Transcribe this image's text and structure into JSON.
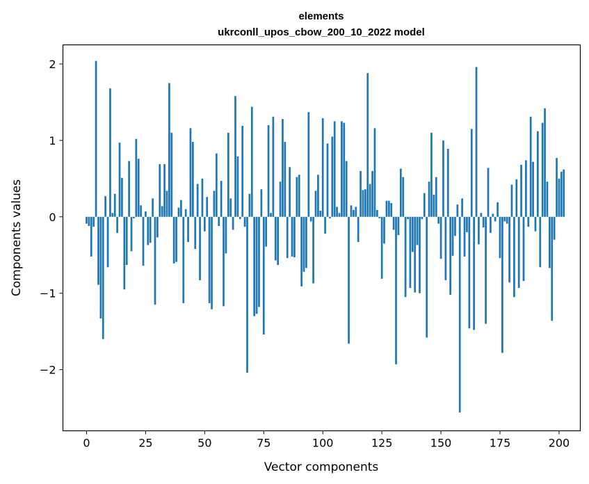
{
  "chart_data": {
    "type": "bar",
    "title_line1": "elements",
    "title_line2": "ukrconll_upos_cbow_200_10_2022 model",
    "xlabel": "Vector components",
    "ylabel": "Components values",
    "xlim": [
      -10,
      209
    ],
    "ylim": [
      -2.8,
      2.25
    ],
    "xticks": [
      0,
      25,
      50,
      75,
      100,
      125,
      150,
      175,
      200
    ],
    "xtick_labels": [
      "0",
      "25",
      "50",
      "75",
      "100",
      "125",
      "150",
      "175",
      "200"
    ],
    "yticks": [
      -2,
      -1,
      0,
      1,
      2
    ],
    "ytick_labels": [
      "−2",
      "−1",
      "0",
      "1",
      "2"
    ],
    "grid": false,
    "bar_color": "#1f77b4",
    "values": [
      -0.09,
      -0.12,
      -0.52,
      -0.13,
      2.04,
      -0.89,
      -1.33,
      -1.6,
      0.27,
      -0.66,
      1.68,
      0.05,
      0.3,
      -0.21,
      0.97,
      0.51,
      -0.95,
      -0.63,
      0.73,
      -0.45,
      -0.02,
      1.02,
      0.76,
      0.15,
      -0.64,
      0.07,
      -0.37,
      -0.34,
      0.24,
      -1.15,
      -0.27,
      0.69,
      0.14,
      0.69,
      0.34,
      1.75,
      1.1,
      -0.61,
      -0.59,
      0.12,
      0.22,
      -1.13,
      0.1,
      -0.33,
      1.16,
      0.98,
      -0.42,
      0.43,
      -0.83,
      0.5,
      -0.19,
      0.26,
      -1.13,
      -1.21,
      0.34,
      0.83,
      -0.12,
      0.47,
      -1.17,
      -0.48,
      1.1,
      0.24,
      -0.17,
      1.58,
      0.79,
      -0.03,
      1.19,
      -0.13,
      -2.04,
      0.3,
      1.44,
      -1.3,
      -1.27,
      -1.18,
      0.36,
      -1.54,
      -0.39,
      1.2,
      0.05,
      1.31,
      -0.57,
      -0.63,
      0.46,
      1.28,
      0.98,
      -0.54,
      0.65,
      -0.52,
      -0.53,
      0.52,
      0.55,
      -0.91,
      -0.72,
      -0.67,
      1.37,
      -0.06,
      -0.87,
      0.34,
      0.55,
      0.08,
      1.29,
      -0.22,
      0.96,
      -0.02,
      1.05,
      1.25,
      0.13,
      0.05,
      1.25,
      1.23,
      0.73,
      -1.66,
      0.15,
      0.09,
      0.13,
      -0.33,
      0.6,
      0.35,
      0.36,
      1.88,
      0.43,
      0.6,
      1.16,
      0.09,
      -0.02,
      -0.81,
      -0.35,
      0.21,
      0.21,
      0.18,
      -0.17,
      -1.93,
      -0.24,
      0.63,
      0.52,
      -1.05,
      -0.03,
      -0.93,
      -0.46,
      -0.99,
      -0.37,
      -1.0,
      -0.03,
      0.31,
      -1.58,
      0.46,
      1.1,
      0.29,
      0.52,
      -0.09,
      -0.55,
      1.0,
      -0.83,
      0.89,
      -1.02,
      -0.51,
      -0.25,
      0.16,
      -2.56,
      0.24,
      -0.52,
      -0.2,
      -1.46,
      1.15,
      -1.48,
      1.96,
      -0.36,
      0.05,
      -0.14,
      -1.4,
      0.64,
      -0.21,
      0.04,
      -0.06,
      0.19,
      -0.54,
      -1.78,
      -0.06,
      -0.09,
      -0.86,
      0.42,
      -1.05,
      0.49,
      -0.93,
      0.68,
      -0.84,
      0.74,
      -0.13,
      1.31,
      0.72,
      -0.19,
      1.12,
      -0.66,
      1.23,
      1.42,
      0.46,
      -0.67,
      -1.36,
      -0.3,
      0.77,
      0.5,
      0.59,
      0.62
    ]
  }
}
